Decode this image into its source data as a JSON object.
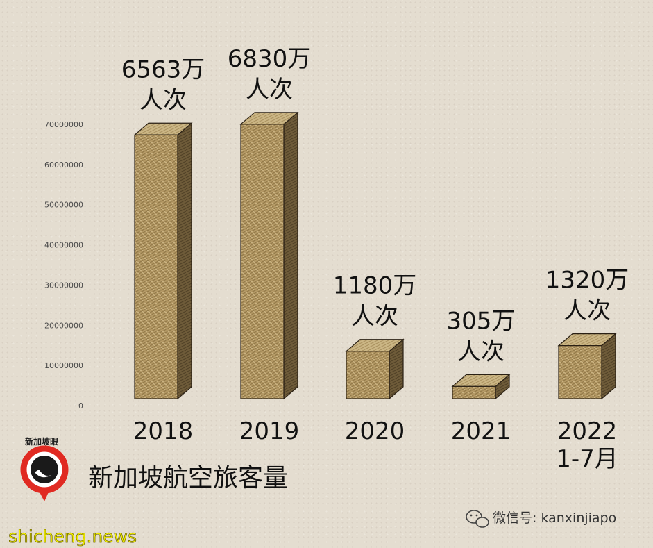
{
  "chart_data": {
    "type": "bar",
    "title": "新加坡航空旅客量",
    "categories": [
      [
        "2018"
      ],
      [
        "2019"
      ],
      [
        "2020"
      ],
      [
        "2021"
      ],
      [
        "2022",
        "1-7月"
      ]
    ],
    "values": [
      65630000,
      68300000,
      11800000,
      3050000,
      13200000
    ],
    "data_labels": [
      [
        "6563万",
        "人次"
      ],
      [
        "6830万",
        "人次"
      ],
      [
        "1180万",
        "人次"
      ],
      [
        "305万",
        "人次"
      ],
      [
        "1320万",
        "人次"
      ]
    ],
    "ylim": [
      0,
      70000000
    ],
    "yticks": [
      0,
      10000000,
      20000000,
      30000000,
      40000000,
      50000000,
      60000000,
      70000000
    ],
    "grid": false,
    "bar_style": "3d-box",
    "colors": {
      "bar_front": "#b19661",
      "bar_top": "#cdb887",
      "bar_side": "#6f5c3a",
      "bar_edge": "#2a2014"
    }
  },
  "branding": {
    "logo_text": "新加坡眼",
    "wechat": "微信号: kanxinjiapo",
    "site": "shicheng.news"
  }
}
